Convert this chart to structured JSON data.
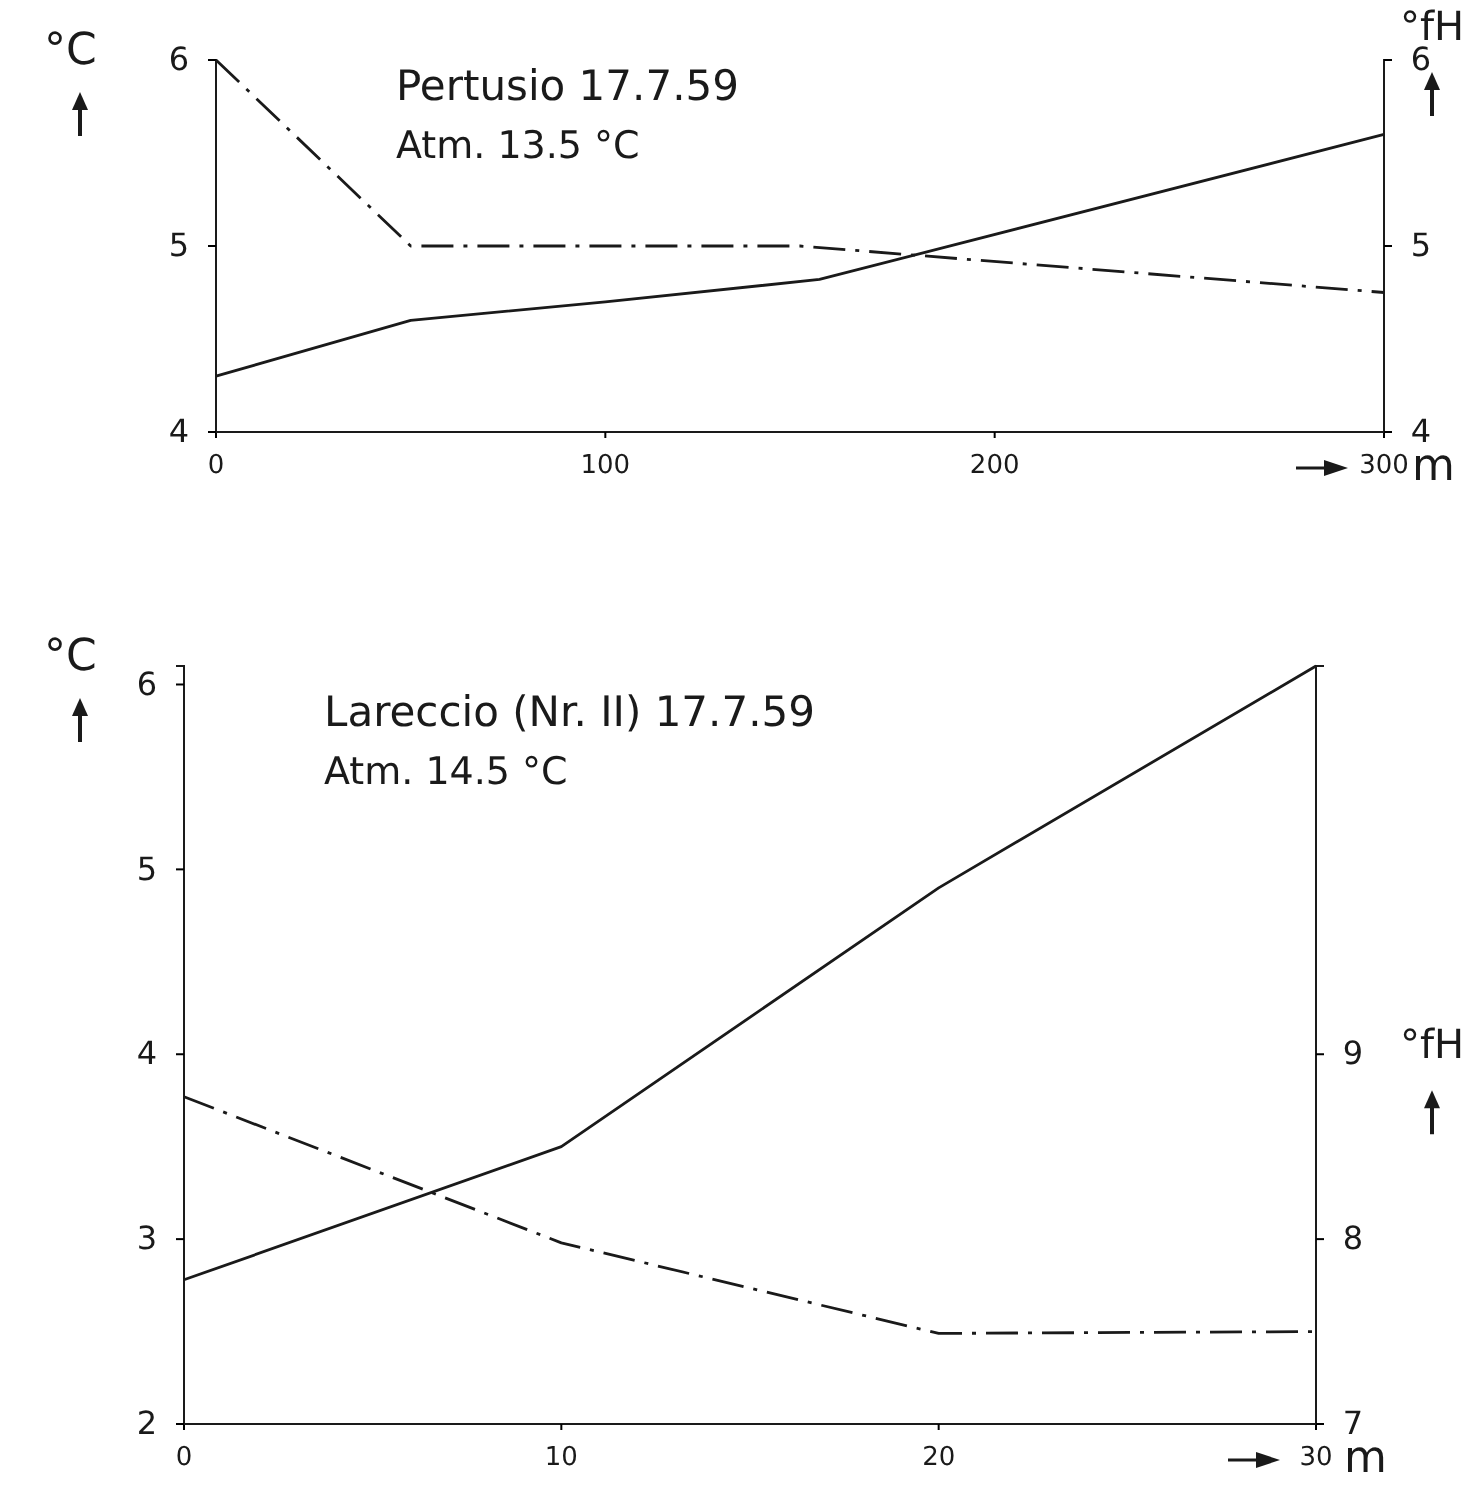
{
  "chart_data": [
    {
      "type": "line",
      "title": "Pertusio 17.7.59",
      "subtitle": "Atm. 13.5 °C",
      "xlabel": "m",
      "ylabel": "°C",
      "y2label": "°fH",
      "x": [
        0,
        50,
        100,
        155,
        300
      ],
      "xlim": [
        0,
        300
      ],
      "xticks": [
        0,
        100,
        200,
        300
      ],
      "ylim": [
        4,
        6
      ],
      "yticks": [
        4,
        5,
        6
      ],
      "y2lim": [
        4,
        6
      ],
      "y2ticks": [
        4,
        5,
        6
      ],
      "grid": false,
      "series": [
        {
          "color": "#1a1a1a",
          "line_style": "solid",
          "values": [
            4.3,
            4.6,
            4.7,
            4.82,
            5.6
          ]
        },
        {
          "color": "#1a1a1a",
          "line_style": "dashed",
          "axis": "y2",
          "x": [
            0,
            50,
            150,
            300
          ],
          "values": [
            6.0,
            5.0,
            5.0,
            4.75
          ]
        }
      ]
    },
    {
      "type": "line",
      "title": "Lareccio (Nr. II) 17.7.59",
      "subtitle": "Atm. 14.5 °C",
      "xlabel": "m",
      "ylabel": "°C",
      "y2label": "°fH",
      "x": [
        0,
        10,
        20,
        30
      ],
      "xlim": [
        0,
        30
      ],
      "xticks": [
        0,
        10,
        20,
        30
      ],
      "ylim": [
        2,
        6.1
      ],
      "yticks": [
        2,
        3,
        4,
        5,
        6
      ],
      "y2lim": [
        7,
        11.1
      ],
      "y2ticks": [
        7,
        8,
        9
      ],
      "grid": false,
      "series": [
        {
          "color": "#1a1a1a",
          "line_style": "solid",
          "values": [
            2.78,
            3.5,
            4.9,
            6.1
          ]
        },
        {
          "color": "#1a1a1a",
          "line_style": "dashed",
          "axis": "y2",
          "values": [
            8.77,
            7.98,
            7.49,
            7.5
          ]
        }
      ]
    }
  ]
}
